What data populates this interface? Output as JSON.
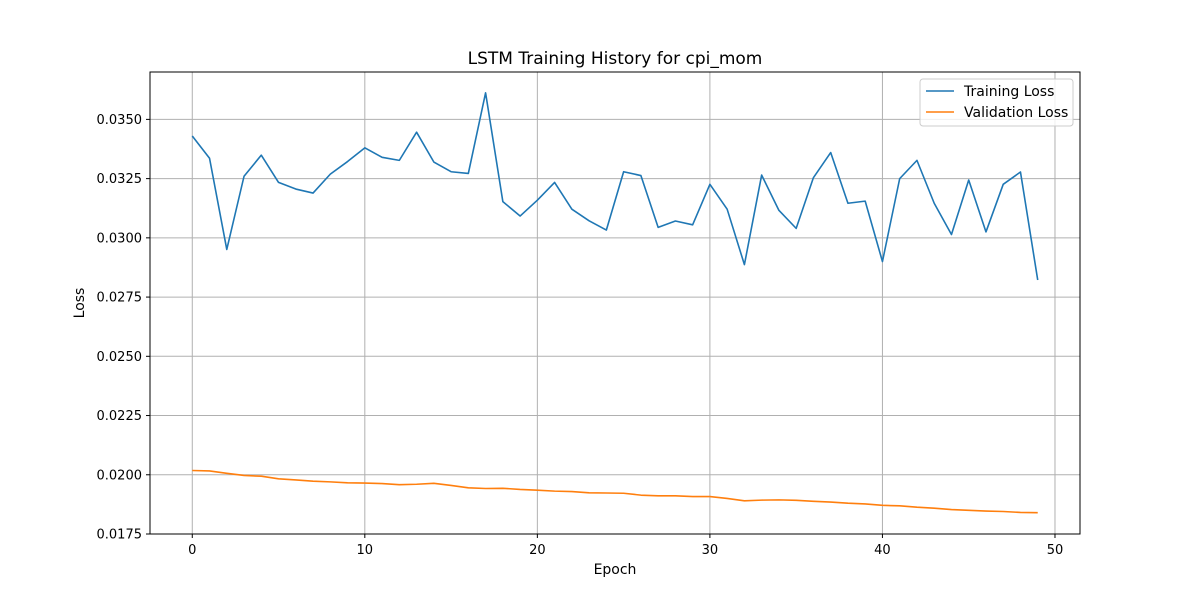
{
  "chart_data": {
    "type": "line",
    "title": "LSTM Training History for cpi_mom",
    "xlabel": "Epoch",
    "ylabel": "Loss",
    "xlim": [
      -2.45,
      51.45
    ],
    "ylim": [
      0.0175,
      0.037
    ],
    "xticks": [
      0,
      10,
      20,
      30,
      40,
      50
    ],
    "yticks": [
      0.0175,
      0.02,
      0.0225,
      0.025,
      0.0275,
      0.03,
      0.0325,
      0.035
    ],
    "xtick_labels": [
      "0",
      "10",
      "20",
      "30",
      "40",
      "50"
    ],
    "ytick_labels": [
      "0.0175",
      "0.0200",
      "0.0225",
      "0.0250",
      "0.0275",
      "0.0300",
      "0.0325",
      "0.0350"
    ],
    "grid": true,
    "legend_position": "top-right",
    "x": [
      0,
      1,
      2,
      3,
      4,
      5,
      6,
      7,
      8,
      9,
      10,
      11,
      12,
      13,
      14,
      15,
      16,
      17,
      18,
      19,
      20,
      21,
      22,
      23,
      24,
      25,
      26,
      27,
      28,
      29,
      30,
      31,
      32,
      33,
      34,
      35,
      36,
      37,
      38,
      39,
      40,
      41,
      42,
      43,
      44,
      45,
      46,
      47,
      48,
      49
    ],
    "series": [
      {
        "name": "Training Loss",
        "color": "#1f77b4",
        "values": [
          0.0343,
          0.03336,
          0.02951,
          0.0326,
          0.03349,
          0.03234,
          0.03206,
          0.03189,
          0.03269,
          0.03322,
          0.0338,
          0.0334,
          0.03327,
          0.03446,
          0.0332,
          0.03279,
          0.03272,
          0.03612,
          0.03153,
          0.03092,
          0.03159,
          0.03234,
          0.03121,
          0.03072,
          0.03033,
          0.03279,
          0.03263,
          0.03044,
          0.03071,
          0.03055,
          0.03226,
          0.03121,
          0.02887,
          0.03265,
          0.03116,
          0.0304,
          0.03254,
          0.0336,
          0.03146,
          0.03155,
          0.029,
          0.0325,
          0.03327,
          0.03146,
          0.03014,
          0.03244,
          0.03025,
          0.03226,
          0.03278,
          0.02822
        ]
      },
      {
        "name": "Validation Loss",
        "color": "#ff7f0e",
        "values": [
          0.02018,
          0.02016,
          0.02006,
          0.01997,
          0.01994,
          0.01983,
          0.01978,
          0.01973,
          0.0197,
          0.01966,
          0.01965,
          0.01963,
          0.01958,
          0.0196,
          0.01964,
          0.01955,
          0.01945,
          0.01942,
          0.01943,
          0.01938,
          0.01935,
          0.01931,
          0.01929,
          0.01924,
          0.01923,
          0.01922,
          0.01914,
          0.01911,
          0.01911,
          0.01908,
          0.01908,
          0.019,
          0.0189,
          0.01893,
          0.01894,
          0.01892,
          0.01888,
          0.01885,
          0.0188,
          0.01877,
          0.01871,
          0.01869,
          0.01863,
          0.01859,
          0.01853,
          0.0185,
          0.01847,
          0.01845,
          0.01841,
          0.0184
        ]
      }
    ]
  }
}
